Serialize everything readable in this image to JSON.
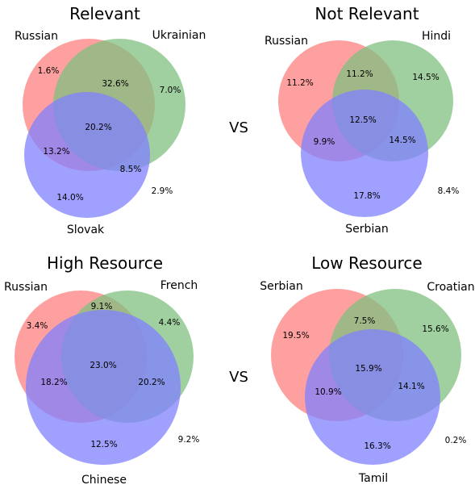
{
  "vs_label": "VS",
  "colors": {
    "set_a": "#ff8080",
    "set_b": "#80c080",
    "set_c": "#8080ff"
  },
  "panels": [
    {
      "title": "Relevant",
      "labels": [
        "Russian",
        "Ukrainian",
        "Slovak"
      ],
      "regions": {
        "a_only": "1.6%",
        "b_only": "7.0%",
        "ab": "32.6%",
        "abc": "20.2%",
        "ac": "13.2%",
        "bc": "8.5%",
        "c_only": "14.0%",
        "outside": "2.9%"
      }
    },
    {
      "title": "Not Relevant",
      "labels": [
        "Russian",
        "Hindi",
        "Serbian"
      ],
      "regions": {
        "a_only": "11.2%",
        "b_only": "14.5%",
        "ab": "11.2%",
        "abc": "12.5%",
        "ac": "9.9%",
        "bc": "14.5%",
        "c_only": "17.8%",
        "outside": "8.4%"
      }
    },
    {
      "title": "High Resource",
      "labels": [
        "Russian",
        "French",
        "Chinese"
      ],
      "regions": {
        "a_only": "3.4%",
        "b_only": "4.4%",
        "ab": "9.1%",
        "abc": "23.0%",
        "ac": "18.2%",
        "bc": "20.2%",
        "c_only": "12.5%",
        "outside": "9.2%"
      }
    },
    {
      "title": "Low Resource",
      "labels": [
        "Serbian",
        "Croatian",
        "Tamil"
      ],
      "regions": {
        "a_only": "19.5%",
        "b_only": "15.6%",
        "ab": "7.5%",
        "abc": "15.9%",
        "ac": "10.9%",
        "bc": "14.1%",
        "c_only": "16.3%",
        "outside": "0.2%"
      }
    }
  ]
}
